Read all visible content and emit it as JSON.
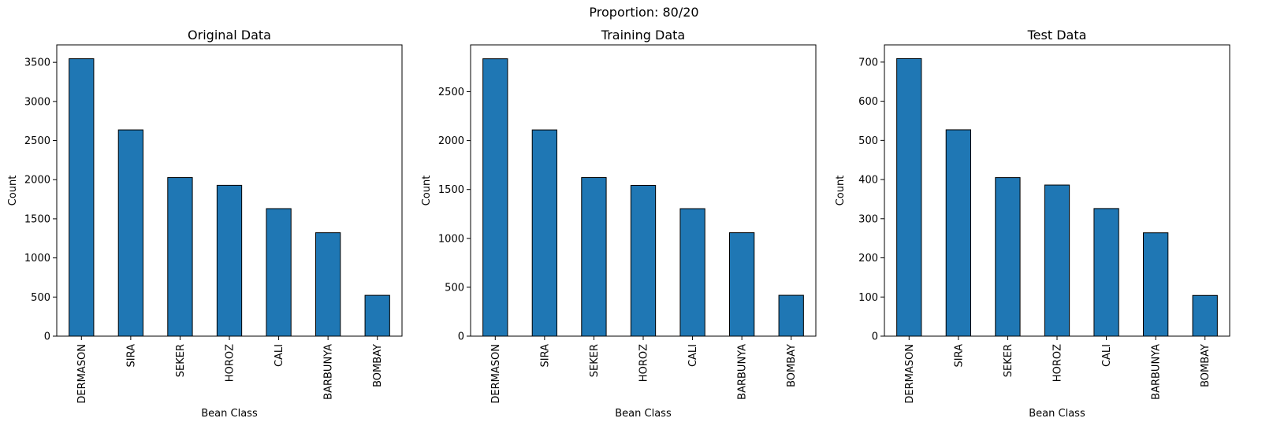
{
  "suptitle": "Proportion: 80/20",
  "chart_data": [
    {
      "type": "bar",
      "title": "Original Data",
      "xlabel": "Bean Class",
      "ylabel": "Count",
      "categories": [
        "DERMASON",
        "SIRA",
        "SEKER",
        "HOROZ",
        "CALI",
        "BARBUNYA",
        "BOMBAY"
      ],
      "values": [
        3546,
        2636,
        2027,
        1928,
        1630,
        1322,
        522
      ],
      "ylim": [
        0,
        3723
      ],
      "yticks": [
        0,
        500,
        1000,
        1500,
        2000,
        2500,
        3000,
        3500
      ],
      "bar_color": "#1f77b4",
      "edge_color": "#000000"
    },
    {
      "type": "bar",
      "title": "Training Data",
      "xlabel": "Bean Class",
      "ylabel": "Count",
      "categories": [
        "DERMASON",
        "SIRA",
        "SEKER",
        "HOROZ",
        "CALI",
        "BARBUNYA",
        "BOMBAY"
      ],
      "values": [
        2837,
        2109,
        1622,
        1542,
        1304,
        1058,
        418
      ],
      "ylim": [
        0,
        2979
      ],
      "yticks": [
        0,
        500,
        1000,
        1500,
        2000,
        2500
      ],
      "bar_color": "#1f77b4",
      "edge_color": "#000000"
    },
    {
      "type": "bar",
      "title": "Test Data",
      "xlabel": "Bean Class",
      "ylabel": "Count",
      "categories": [
        "DERMASON",
        "SIRA",
        "SEKER",
        "HOROZ",
        "CALI",
        "BARBUNYA",
        "BOMBAY"
      ],
      "values": [
        709,
        527,
        405,
        386,
        326,
        264,
        104
      ],
      "ylim": [
        0,
        744
      ],
      "yticks": [
        0,
        100,
        200,
        300,
        400,
        500,
        600,
        700
      ],
      "bar_color": "#1f77b4",
      "edge_color": "#000000"
    }
  ]
}
